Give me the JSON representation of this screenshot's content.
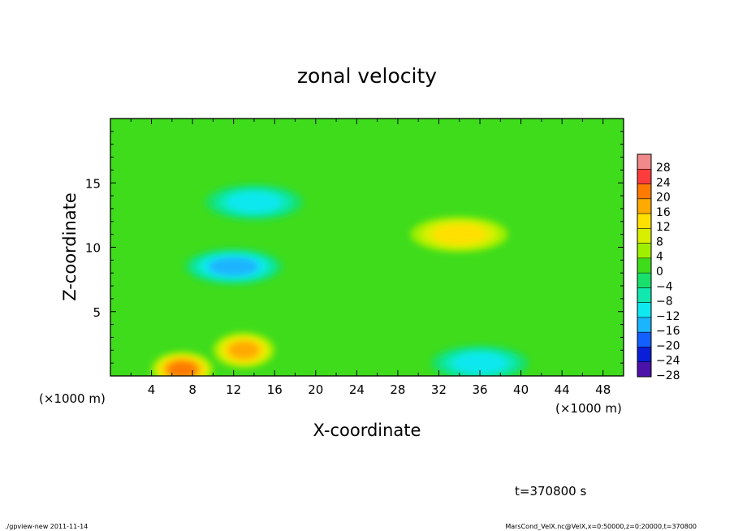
{
  "chart_data": {
    "type": "heatmap",
    "title": "zonal velocity",
    "xlabel": "X-coordinate",
    "ylabel": "Z-coordinate",
    "x_unit_note": "(×1000 m)",
    "x_unit_note_bottom": "(×1000 m)",
    "x_range": [
      0,
      50
    ],
    "y_range": [
      0,
      20
    ],
    "x_ticks": [
      4,
      8,
      12,
      16,
      20,
      24,
      28,
      32,
      36,
      40,
      44,
      48
    ],
    "x_tick_labels": [
      "4",
      "8",
      "12",
      "16",
      "20",
      "24",
      "28",
      "32",
      "36",
      "40",
      "44",
      "48"
    ],
    "y_ticks": [
      5,
      10,
      15
    ],
    "y_tick_labels": [
      "5",
      "10",
      "15"
    ],
    "colorbar": {
      "levels": [
        28,
        24,
        20,
        16,
        12,
        8,
        4,
        0,
        -4,
        -8,
        -12,
        -16,
        -20,
        -24,
        -28
      ],
      "labels": [
        "28",
        "24",
        "20",
        "16",
        "12",
        "8",
        "4",
        "0",
        "−4",
        "−8",
        "−12",
        "−16",
        "−20",
        "−24",
        "−28"
      ],
      "colors": [
        "#f08a8a",
        "#ff3c3c",
        "#ff7a00",
        "#ffaa00",
        "#ffe000",
        "#d8f000",
        "#9fef00",
        "#3fdc1c",
        "#18e06a",
        "#10e8b0",
        "#10e8f0",
        "#1ab4ff",
        "#1460ff",
        "#0a1ed8",
        "#4a12a8"
      ]
    },
    "features": [
      {
        "kind": "max",
        "x": 34,
        "z": 11,
        "value": 12
      },
      {
        "kind": "max",
        "x": 13,
        "z": 2,
        "value": 16
      },
      {
        "kind": "max",
        "x": 7,
        "z": 0.5,
        "value": 20
      },
      {
        "kind": "min",
        "x": 12,
        "z": 8.5,
        "value": -16
      },
      {
        "kind": "min",
        "x": 14,
        "z": 13.5,
        "value": -10
      },
      {
        "kind": "min",
        "x": 36,
        "z": 1,
        "value": -10
      }
    ],
    "background_value": 0
  },
  "annotations": {
    "time": "t=370800 s",
    "footer_left": "./gpview-new   2011-11-14",
    "footer_right": "MarsCond_VelX.nc@VelX,x=0:50000,z=0:20000,t=370800"
  }
}
